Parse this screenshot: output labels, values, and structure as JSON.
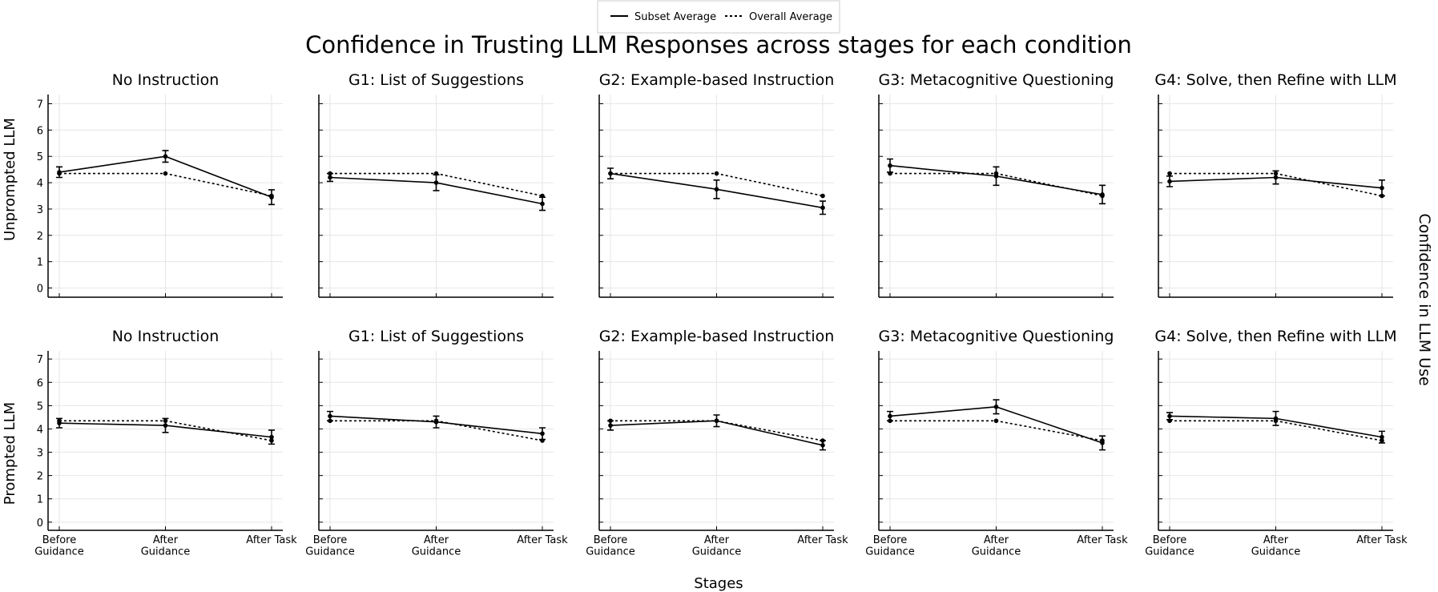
{
  "title": "Confidence in Trusting LLM Responses across stages for each condition",
  "row_labels": [
    "Unprompted LLM",
    "Prompted LLM"
  ],
  "right_label": "Confidence in LLM Use",
  "xlabel": "Stages",
  "chart_data": [
    {
      "type": "line",
      "title": "No Instruction",
      "categories": [
        "Before\nGuidance",
        "After\nGuidance",
        "After Task"
      ],
      "ylim": [
        -0.35,
        7.35
      ],
      "yticks": [
        0,
        1,
        2,
        3,
        4,
        5,
        6,
        7
      ],
      "ytick_labels": true,
      "xtick_labels": false,
      "grid": true,
      "series": [
        {
          "name": "Subset Average",
          "color": "#000000",
          "dash": "solid",
          "values": [
            4.4,
            5.0,
            3.45
          ],
          "errors": [
            0.2,
            0.22,
            0.28
          ]
        },
        {
          "name": "Overall Average",
          "color": "#000000",
          "dash": "dotted",
          "values": [
            4.35,
            4.35,
            3.5
          ]
        }
      ]
    },
    {
      "type": "line",
      "title": "G1: List of Suggestions",
      "categories": [
        "Before\nGuidance",
        "After\nGuidance",
        "After Task"
      ],
      "ylim": [
        -0.35,
        7.35
      ],
      "yticks": [
        0,
        1,
        2,
        3,
        4,
        5,
        6,
        7
      ],
      "ytick_labels": false,
      "xtick_labels": false,
      "grid": true,
      "series": [
        {
          "name": "Subset Average",
          "color": "#000000",
          "dash": "solid",
          "values": [
            4.2,
            4.0,
            3.2
          ],
          "errors": [
            0.15,
            0.3,
            0.25
          ]
        },
        {
          "name": "Overall Average",
          "color": "#000000",
          "dash": "dotted",
          "values": [
            4.35,
            4.35,
            3.5
          ]
        }
      ]
    },
    {
      "type": "line",
      "title": "G2: Example-based Instruction",
      "categories": [
        "Before\nGuidance",
        "After\nGuidance",
        "After Task"
      ],
      "ylim": [
        -0.35,
        7.35
      ],
      "yticks": [
        0,
        1,
        2,
        3,
        4,
        5,
        6,
        7
      ],
      "ytick_labels": false,
      "xtick_labels": false,
      "grid": true,
      "series": [
        {
          "name": "Subset Average",
          "color": "#000000",
          "dash": "solid",
          "values": [
            4.35,
            3.75,
            3.05
          ],
          "errors": [
            0.2,
            0.35,
            0.25
          ]
        },
        {
          "name": "Overall Average",
          "color": "#000000",
          "dash": "dotted",
          "values": [
            4.35,
            4.35,
            3.5
          ]
        }
      ]
    },
    {
      "type": "line",
      "title": "G3: Metacognitive Questioning",
      "categories": [
        "Before\nGuidance",
        "After\nGuidance",
        "After Task"
      ],
      "ylim": [
        -0.35,
        7.35
      ],
      "yticks": [
        0,
        1,
        2,
        3,
        4,
        5,
        6,
        7
      ],
      "ytick_labels": false,
      "xtick_labels": false,
      "grid": true,
      "series": [
        {
          "name": "Subset Average",
          "color": "#000000",
          "dash": "solid",
          "values": [
            4.65,
            4.25,
            3.55
          ],
          "errors": [
            0.25,
            0.35,
            0.35
          ]
        },
        {
          "name": "Overall Average",
          "color": "#000000",
          "dash": "dotted",
          "values": [
            4.35,
            4.35,
            3.5
          ]
        }
      ]
    },
    {
      "type": "line",
      "title": "G4: Solve, then Refine with LLM",
      "categories": [
        "Before\nGuidance",
        "After\nGuidance",
        "After Task"
      ],
      "ylim": [
        -0.35,
        7.35
      ],
      "yticks": [
        0,
        1,
        2,
        3,
        4,
        5,
        6,
        7
      ],
      "ytick_labels": false,
      "xtick_labels": false,
      "grid": true,
      "series": [
        {
          "name": "Subset Average",
          "color": "#000000",
          "dash": "solid",
          "values": [
            4.05,
            4.2,
            3.8
          ],
          "errors": [
            0.2,
            0.25,
            0.3
          ]
        },
        {
          "name": "Overall Average",
          "color": "#000000",
          "dash": "dotted",
          "values": [
            4.35,
            4.35,
            3.5
          ]
        }
      ]
    },
    {
      "type": "line",
      "title": "No Instruction",
      "categories": [
        "Before\nGuidance",
        "After\nGuidance",
        "After Task"
      ],
      "ylim": [
        -0.35,
        7.35
      ],
      "yticks": [
        0,
        1,
        2,
        3,
        4,
        5,
        6,
        7
      ],
      "ytick_labels": true,
      "xtick_labels": true,
      "grid": true,
      "series": [
        {
          "name": "Subset Average",
          "color": "#000000",
          "dash": "solid",
          "values": [
            4.25,
            4.15,
            3.65
          ],
          "errors": [
            0.2,
            0.3,
            0.3
          ]
        },
        {
          "name": "Overall Average",
          "color": "#000000",
          "dash": "dotted",
          "values": [
            4.35,
            4.35,
            3.5
          ]
        }
      ]
    },
    {
      "type": "line",
      "title": "G1: List of Suggestions",
      "categories": [
        "Before\nGuidance",
        "After\nGuidance",
        "After Task"
      ],
      "ylim": [
        -0.35,
        7.35
      ],
      "yticks": [
        0,
        1,
        2,
        3,
        4,
        5,
        6,
        7
      ],
      "ytick_labels": false,
      "xtick_labels": true,
      "grid": true,
      "series": [
        {
          "name": "Subset Average",
          "color": "#000000",
          "dash": "solid",
          "values": [
            4.55,
            4.3,
            3.8
          ],
          "errors": [
            0.2,
            0.25,
            0.25
          ]
        },
        {
          "name": "Overall Average",
          "color": "#000000",
          "dash": "dotted",
          "values": [
            4.35,
            4.35,
            3.5
          ]
        }
      ]
    },
    {
      "type": "line",
      "title": "G2: Example-based Instruction",
      "categories": [
        "Before\nGuidance",
        "After\nGuidance",
        "After Task"
      ],
      "ylim": [
        -0.35,
        7.35
      ],
      "yticks": [
        0,
        1,
        2,
        3,
        4,
        5,
        6,
        7
      ],
      "ytick_labels": false,
      "xtick_labels": true,
      "grid": true,
      "series": [
        {
          "name": "Subset Average",
          "color": "#000000",
          "dash": "solid",
          "values": [
            4.15,
            4.35,
            3.3
          ],
          "errors": [
            0.2,
            0.25,
            0.2
          ]
        },
        {
          "name": "Overall Average",
          "color": "#000000",
          "dash": "dotted",
          "values": [
            4.35,
            4.35,
            3.5
          ]
        }
      ]
    },
    {
      "type": "line",
      "title": "G3: Metacognitive Questioning",
      "categories": [
        "Before\nGuidance",
        "After\nGuidance",
        "After Task"
      ],
      "ylim": [
        -0.35,
        7.35
      ],
      "yticks": [
        0,
        1,
        2,
        3,
        4,
        5,
        6,
        7
      ],
      "ytick_labels": false,
      "xtick_labels": true,
      "grid": true,
      "series": [
        {
          "name": "Subset Average",
          "color": "#000000",
          "dash": "solid",
          "values": [
            4.55,
            4.95,
            3.4
          ],
          "errors": [
            0.2,
            0.3,
            0.3
          ]
        },
        {
          "name": "Overall Average",
          "color": "#000000",
          "dash": "dotted",
          "values": [
            4.35,
            4.35,
            3.5
          ]
        }
      ]
    },
    {
      "type": "line",
      "title": "G4: Solve, then Refine with LLM",
      "categories": [
        "Before\nGuidance",
        "After\nGuidance",
        "After Task"
      ],
      "ylim": [
        -0.35,
        7.35
      ],
      "yticks": [
        0,
        1,
        2,
        3,
        4,
        5,
        6,
        7
      ],
      "ytick_labels": false,
      "xtick_labels": true,
      "grid": true,
      "series": [
        {
          "name": "Subset Average",
          "color": "#000000",
          "dash": "solid",
          "values": [
            4.55,
            4.45,
            3.65
          ],
          "errors": [
            0.15,
            0.3,
            0.25
          ]
        },
        {
          "name": "Overall Average",
          "color": "#000000",
          "dash": "dotted",
          "values": [
            4.35,
            4.35,
            3.5
          ]
        }
      ]
    }
  ]
}
